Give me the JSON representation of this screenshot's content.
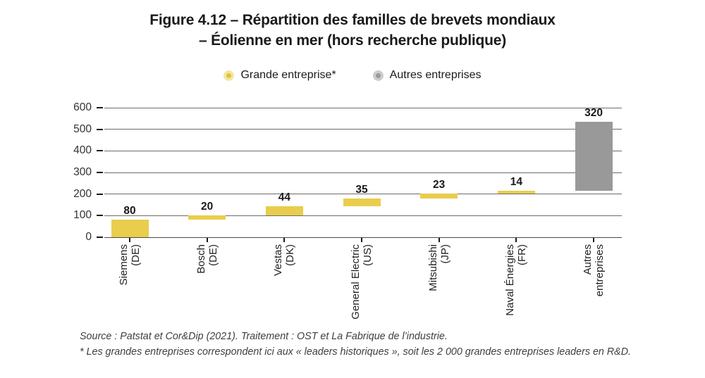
{
  "title": {
    "line1": "Figure 4.12 – Répartition des familles de brevets mondiaux",
    "line2": "– Éolienne en mer (hors recherche publique)"
  },
  "legend": {
    "items": [
      {
        "label": "Grande entreprise*",
        "color_inner": "#e0c23c",
        "color_outer": "#f3e7a4"
      },
      {
        "label": "Autres entreprises",
        "color_inner": "#9a9a9a",
        "color_outer": "#cccccc"
      }
    ]
  },
  "chart_data": {
    "type": "bar",
    "subtype": "waterfall",
    "title": "Figure 4.12 – Répartition des familles de brevets mondiaux – Éolienne en mer (hors recherche publique)",
    "xlabel": "",
    "ylabel": "",
    "ylim": [
      0,
      600
    ],
    "yticks": [
      0,
      100,
      200,
      300,
      400,
      500,
      600
    ],
    "grid": "horizontal",
    "legend_position": "top",
    "legend_entries": [
      "Grande entreprise*",
      "Autres entreprises"
    ],
    "bars": [
      {
        "label_lines": [
          "Siemens",
          "(DE)"
        ],
        "value": 80,
        "start": 0,
        "end": 80,
        "group": "grande_entreprise"
      },
      {
        "label_lines": [
          "Bosch",
          "(DE)"
        ],
        "value": 20,
        "start": 80,
        "end": 100,
        "group": "grande_entreprise"
      },
      {
        "label_lines": [
          "Vestas",
          "(DK)"
        ],
        "value": 44,
        "start": 100,
        "end": 144,
        "group": "grande_entreprise"
      },
      {
        "label_lines": [
          "General Electric",
          "(US)"
        ],
        "value": 35,
        "start": 144,
        "end": 179,
        "group": "grande_entreprise"
      },
      {
        "label_lines": [
          "Mitsubishi",
          "(JP)"
        ],
        "value": 23,
        "start": 179,
        "end": 202,
        "group": "grande_entreprise"
      },
      {
        "label_lines": [
          "Naval Énergies",
          "(FR)"
        ],
        "value": 14,
        "start": 202,
        "end": 216,
        "group": "grande_entreprise"
      },
      {
        "label_lines": [
          "Autres",
          "entreprises"
        ],
        "value": 320,
        "start": 216,
        "end": 536,
        "group": "autres_entreprises"
      }
    ],
    "colors": {
      "grande_entreprise": "#e9cd4c",
      "autres_entreprises": "#999999"
    }
  },
  "footnotes": {
    "line1": "Source : Patstat et Cor&Dip (2021). Traitement : OST et La Fabrique de l’industrie.",
    "line2": "* Les grandes entreprises correspondent ici aux « leaders historiques », soit les 2 000 grandes entreprises leaders en R&D."
  }
}
